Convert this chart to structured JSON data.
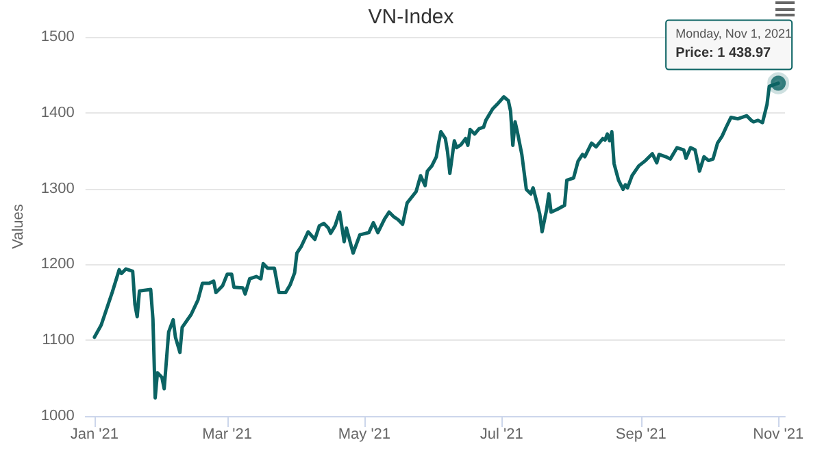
{
  "chart_data": {
    "type": "line",
    "title": "VN-Index",
    "ylabel": "Values",
    "x": [
      "2021-01-01",
      "2021-01-04",
      "2021-01-09",
      "2021-01-12",
      "2021-01-13",
      "2021-01-15",
      "2021-01-18",
      "2021-01-19",
      "2021-01-20",
      "2021-01-21",
      "2021-01-26",
      "2021-01-27",
      "2021-01-28",
      "2021-01-29",
      "2021-01-31",
      "2021-02-01",
      "2021-02-03",
      "2021-02-05",
      "2021-02-06",
      "2021-02-08",
      "2021-02-09",
      "2021-02-13",
      "2021-02-16",
      "2021-02-18",
      "2021-02-21",
      "2021-02-23",
      "2021-02-24",
      "2021-02-27",
      "2021-03-01",
      "2021-03-03",
      "2021-03-04",
      "2021-03-08",
      "2021-03-09",
      "2021-03-11",
      "2021-03-14",
      "2021-03-16",
      "2021-03-17",
      "2021-03-19",
      "2021-03-22",
      "2021-03-24",
      "2021-03-27",
      "2021-03-29",
      "2021-03-31",
      "2021-04-01",
      "2021-04-03",
      "2021-04-06",
      "2021-04-09",
      "2021-04-11",
      "2021-04-13",
      "2021-04-15",
      "2021-04-16",
      "2021-04-18",
      "2021-04-20",
      "2021-04-22",
      "2021-04-23",
      "2021-04-26",
      "2021-04-29",
      "2021-05-03",
      "2021-05-05",
      "2021-05-07",
      "2021-05-10",
      "2021-05-12",
      "2021-05-14",
      "2021-05-16",
      "2021-05-18",
      "2021-05-20",
      "2021-05-24",
      "2021-05-26",
      "2021-05-28",
      "2021-05-29",
      "2021-05-31",
      "2021-06-02",
      "2021-06-03",
      "2021-06-04",
      "2021-06-06",
      "2021-06-07",
      "2021-06-08",
      "2021-06-10",
      "2021-06-11",
      "2021-06-13",
      "2021-06-15",
      "2021-06-16",
      "2021-06-17",
      "2021-06-19",
      "2021-06-21",
      "2021-06-23",
      "2021-06-24",
      "2021-06-27",
      "2021-06-29",
      "2021-07-02",
      "2021-07-04",
      "2021-07-05",
      "2021-07-06",
      "2021-07-07",
      "2021-07-08",
      "2021-07-10",
      "2021-07-12",
      "2021-07-14",
      "2021-07-15",
      "2021-07-17",
      "2021-07-18",
      "2021-07-19",
      "2021-07-21",
      "2021-07-22",
      "2021-07-23",
      "2021-07-26",
      "2021-07-29",
      "2021-07-30",
      "2021-08-02",
      "2021-08-04",
      "2021-08-06",
      "2021-08-07",
      "2021-08-10",
      "2021-08-12",
      "2021-08-15",
      "2021-08-16",
      "2021-08-17",
      "2021-08-18",
      "2021-08-19",
      "2021-08-20",
      "2021-08-22",
      "2021-08-24",
      "2021-08-25",
      "2021-08-26",
      "2021-08-28",
      "2021-08-31",
      "2021-09-03",
      "2021-09-06",
      "2021-09-08",
      "2021-09-09",
      "2021-09-12",
      "2021-09-14",
      "2021-09-17",
      "2021-09-20",
      "2021-09-21",
      "2021-09-23",
      "2021-09-25",
      "2021-09-27",
      "2021-09-29",
      "2021-10-01",
      "2021-10-03",
      "2021-10-05",
      "2021-10-07",
      "2021-10-09",
      "2021-10-11",
      "2021-10-14",
      "2021-10-18",
      "2021-10-20",
      "2021-10-21",
      "2021-10-23",
      "2021-10-25",
      "2021-10-27",
      "2021-10-28",
      "2021-11-01"
    ],
    "series": [
      {
        "color": "#0b6363",
        "values": [
          1104,
          1120,
          1164,
          1193,
          1188,
          1194,
          1191,
          1147,
          1131,
          1165,
          1167,
          1128,
          1024,
          1057,
          1051,
          1036,
          1111,
          1127,
          1104,
          1084,
          1117,
          1134,
          1153,
          1175,
          1175,
          1178,
          1163,
          1172,
          1187,
          1187,
          1170,
          1169,
          1161,
          1181,
          1184,
          1181,
          1201,
          1195,
          1195,
          1163,
          1163,
          1173,
          1189,
          1215,
          1224,
          1243,
          1233,
          1251,
          1254,
          1248,
          1241,
          1251,
          1269,
          1230,
          1248,
          1215,
          1239,
          1242,
          1255,
          1242,
          1260,
          1269,
          1263,
          1259,
          1253,
          1281,
          1296,
          1317,
          1304,
          1323,
          1330,
          1342,
          1360,
          1375,
          1366,
          1348,
          1320,
          1363,
          1354,
          1358,
          1366,
          1357,
          1378,
          1372,
          1379,
          1381,
          1390,
          1405,
          1411,
          1421,
          1416,
          1402,
          1357,
          1388,
          1375,
          1345,
          1299,
          1293,
          1301,
          1278,
          1266,
          1243,
          1272,
          1293,
          1269,
          1273,
          1278,
          1311,
          1314,
          1336,
          1345,
          1342,
          1360,
          1355,
          1366,
          1364,
          1372,
          1363,
          1375,
          1333,
          1311,
          1299,
          1305,
          1301,
          1317,
          1330,
          1337,
          1346,
          1334,
          1345,
          1342,
          1339,
          1354,
          1351,
          1340,
          1354,
          1351,
          1323,
          1342,
          1337,
          1339,
          1360,
          1369,
          1382,
          1394,
          1392,
          1396,
          1390,
          1388,
          1390,
          1387,
          1411,
          1435,
          1438.97
        ]
      }
    ],
    "xlim": [
      "2020-12-28",
      "2021-11-04"
    ],
    "xticks": [
      {
        "value": "2021-01-01",
        "label": "Jan '21"
      },
      {
        "value": "2021-03-01",
        "label": "Mar '21"
      },
      {
        "value": "2021-05-01",
        "label": "May '21"
      },
      {
        "value": "2021-07-01",
        "label": "Jul '21"
      },
      {
        "value": "2021-09-01",
        "label": "Sep '21"
      },
      {
        "value": "2021-11-01",
        "label": "Nov '21"
      }
    ],
    "ylim": [
      1000,
      1500
    ],
    "yticks": [
      1000,
      1100,
      1200,
      1300,
      1400,
      1500
    ],
    "grid": "y",
    "marker": "none",
    "line_style": "solid",
    "annotations": [
      {
        "text": "Monday, Nov 1, 2021\nPrice: 1 438.97",
        "x": "2021-11-01",
        "y": 1438.97
      }
    ]
  }
}
